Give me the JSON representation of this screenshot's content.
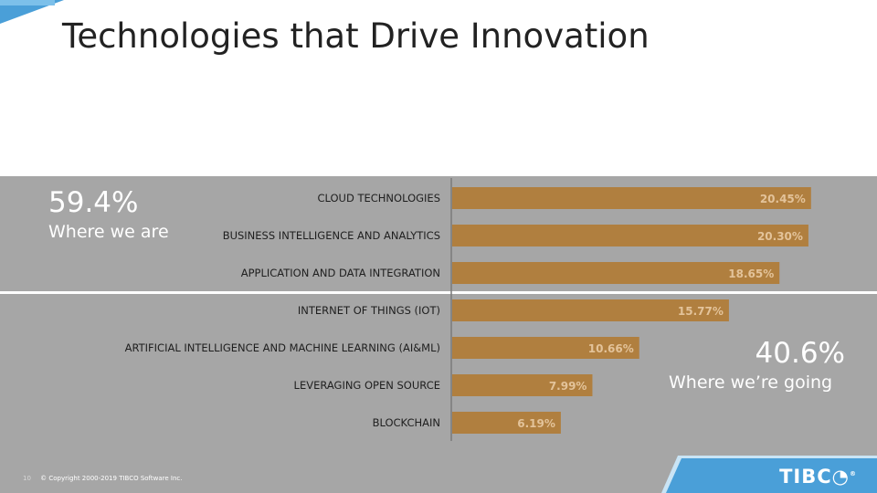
{
  "slide": {
    "title": "Technologies that Drive Innovation"
  },
  "stats": {
    "left": {
      "pct": "59.4%",
      "caption": "Where we are"
    },
    "right": {
      "pct": "40.6%",
      "caption": "Where we’re going"
    }
  },
  "chart_data": {
    "type": "bar",
    "orientation": "horizontal",
    "categories": [
      "CLOUD TECHNOLOGIES",
      "BUSINESS INTELLIGENCE AND ANALYTICS",
      "APPLICATION AND DATA INTEGRATION",
      "INTERNET OF THINGS (IOT)",
      "ARTIFICIAL INTELLIGENCE AND MACHINE LEARNING (AI&ML)",
      "LEVERAGING OPEN SOURCE",
      "BLOCKCHAIN"
    ],
    "values": [
      20.45,
      20.3,
      18.65,
      15.77,
      10.66,
      7.99,
      6.19
    ],
    "value_labels": [
      "20.45%",
      "20.30%",
      "18.65%",
      "15.77%",
      "10.66%",
      "7.99%",
      "6.19%"
    ],
    "xlim": [
      0,
      24
    ],
    "grid": false,
    "bar_color": "#b07f3f"
  },
  "footer": {
    "page_number": "10",
    "copyright": "© Copyright 2000-2019 TIBCO Software Inc."
  },
  "logo": {
    "text": "TIBC",
    "mark": "®",
    "band_color": "#4a9fd8"
  },
  "colors": {
    "panel": "#a6a6a6",
    "accent": "#4a9fd8"
  }
}
